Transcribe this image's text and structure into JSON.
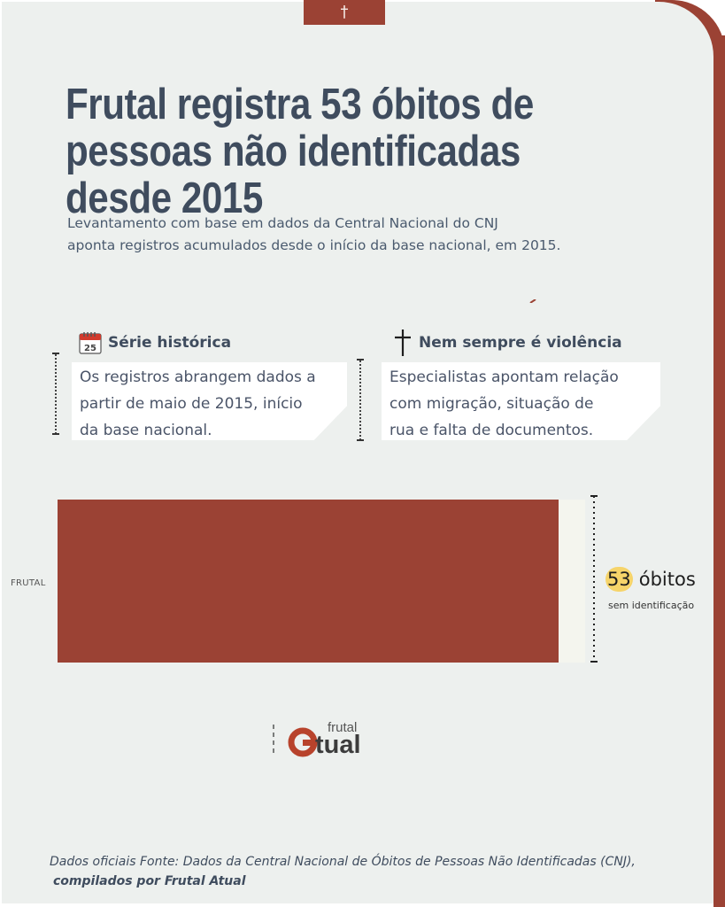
{
  "header": {
    "tab_icon": "cross-icon",
    "tab_glyph": "†",
    "title": "Frutal registra 53 óbitos de pessoas não identificadas desde 2015",
    "subtitle_lines": [
      "Levantamento com base em dados da Central Nacional do CNJ",
      "aponta registros acumulados desde o início da base nacional, em 2015."
    ]
  },
  "cards": [
    {
      "icon": "calendar-icon",
      "icon_text": "25",
      "heading": "Série histórica",
      "lines": [
        "Os registros abrangem dados a",
        "partir de maio de 2015, início",
        "da base nacional."
      ]
    },
    {
      "icon": "cross-icon",
      "heading": "Nem sempre é violência",
      "lines": [
        "Especialistas apontam relação",
        "com migração, situação de",
        "rua e falta de documentos."
      ]
    }
  ],
  "chart_data": {
    "type": "bar",
    "orientation": "horizontal",
    "categories": [
      "FRUTAL"
    ],
    "values": [
      53
    ],
    "value_label": {
      "number": "53",
      "unit": "óbitos",
      "caption": "sem identificação"
    }
  },
  "logo": {
    "icon": "frutal-atual-logo",
    "text_small": "frutal",
    "text_large": "tual"
  },
  "footer": {
    "line1": "Dados oficiais Fonte: Dados da Central Nacional de Óbitos de Pessoas Não Identificadas (CNJ),",
    "line2": "compilados por Frutal Atual"
  },
  "colors": {
    "accent": "#9b4234",
    "background": "#edf0ee",
    "title": "#3f4c5e",
    "highlight": "#f6d46a"
  }
}
